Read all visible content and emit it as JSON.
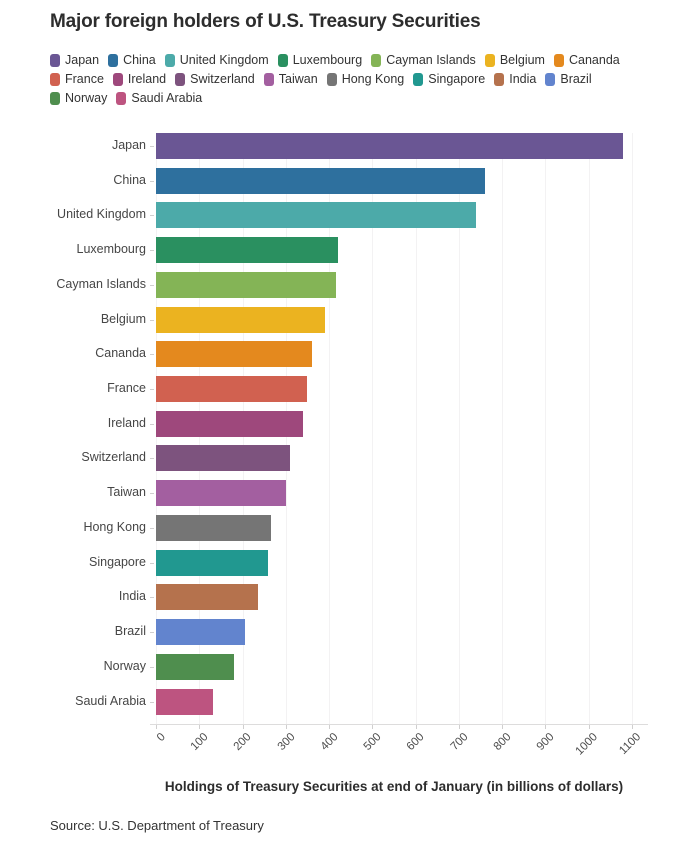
{
  "title": "Major foreign holders of U.S. Treasury Securities",
  "source": "Source: U.S. Department of Treasury",
  "chart_data": {
    "type": "bar",
    "orientation": "horizontal",
    "title": "Major foreign holders of U.S. Treasury Securities",
    "xlabel": "Holdings of Treasury Securities at end of January (in billions of dollars)",
    "ylabel": "",
    "xlim": [
      0,
      1100
    ],
    "xticks": [
      0,
      100,
      200,
      300,
      400,
      500,
      600,
      700,
      800,
      900,
      1000,
      1100
    ],
    "grid": true,
    "legend_position": "top",
    "categories": [
      "Japan",
      "China",
      "United Kingdom",
      "Luxembourg",
      "Cayman Islands",
      "Belgium",
      "Cananda",
      "France",
      "Ireland",
      "Switzerland",
      "Taiwan",
      "Hong Kong",
      "Singapore",
      "India",
      "Brazil",
      "Norway",
      "Saudi Arabia"
    ],
    "values": [
      1080,
      760,
      740,
      420,
      415,
      390,
      360,
      350,
      340,
      310,
      300,
      265,
      258,
      235,
      206,
      180,
      131
    ],
    "colors": [
      "#6a5694",
      "#2e709e",
      "#4caaa9",
      "#2a9060",
      "#84b456",
      "#ebb320",
      "#e4891e",
      "#d16150",
      "#9e487c",
      "#7d537e",
      "#a35fa0",
      "#757575",
      "#219890",
      "#b5724d",
      "#6284ce",
      "#4f8e4e",
      "#bd5480"
    ]
  },
  "colors": {
    "title_text": "#2d2d2d",
    "axis_text": "#4d4d4d",
    "gridline": "#f3f2f3",
    "axis_line": "#dddcdc"
  }
}
